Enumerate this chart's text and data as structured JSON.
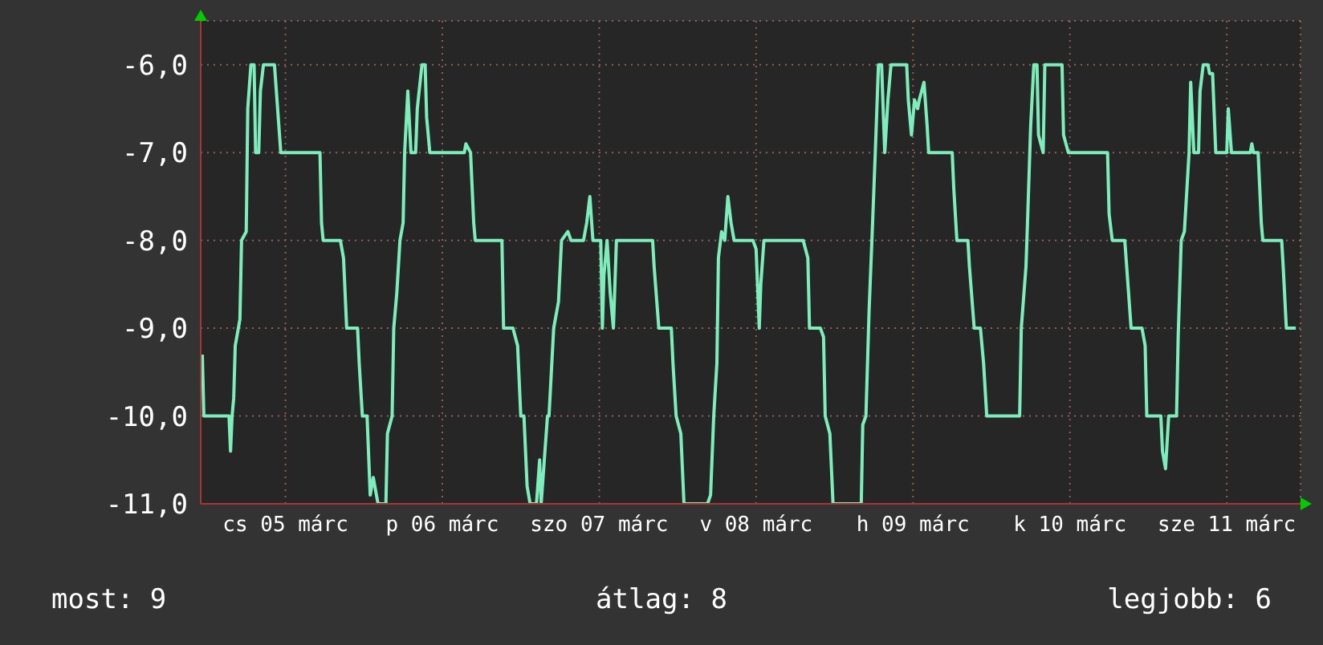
{
  "chart_data": {
    "type": "line",
    "color": "#7deebb",
    "marker": "none",
    "line_style": "solid",
    "grid": true,
    "legend": false,
    "x": [
      "--03-04T23:17",
      "--03-04T23:31",
      "--03-05T03:22",
      "--03-05T03:36",
      "--03-05T03:50",
      "--03-05T04:05",
      "--03-05T04:19",
      "--03-05T05:02",
      "--03-05T05:17",
      "--03-05T06:00",
      "--03-05T06:14",
      "--03-05T06:43",
      "--03-05T07:12",
      "--03-05T07:26",
      "--03-05T07:55",
      "--03-05T08:10",
      "--03-05T08:38",
      "--03-05T10:19",
      "--03-05T10:48",
      "--03-05T11:17",
      "--03-05T17:17",
      "--03-05T17:31",
      "--03-05T17:46",
      "--03-05T20:24",
      "--03-05T20:53",
      "--03-05T21:22",
      "--03-05T23:02",
      "--03-05T23:17",
      "--03-05T23:46",
      "--03-06T00:29",
      "--03-06T00:58",
      "--03-06T01:26",
      "--03-06T01:55",
      "--03-06T02:10",
      "--03-06T03:22",
      "--03-06T03:36",
      "--03-06T04:19",
      "--03-06T04:34",
      "--03-06T05:02",
      "--03-06T05:31",
      "--03-06T06:00",
      "--03-06T06:14",
      "--03-06T06:43",
      "--03-06T07:12",
      "--03-06T07:55",
      "--03-06T08:10",
      "--03-06T08:53",
      "--03-06T09:22",
      "--03-06T09:36",
      "--03-06T10:05",
      "--03-06T15:22",
      "--03-06T15:36",
      "--03-06T16:19",
      "--03-06T16:48",
      "--03-06T17:02",
      "--03-06T21:07",
      "--03-06T21:22",
      "--03-06T22:48",
      "--03-06T23:31",
      "--03-07T00:00",
      "--03-07T00:29",
      "--03-07T00:58",
      "--03-07T01:26",
      "--03-07T02:24",
      "--03-07T02:53",
      "--03-07T03:07",
      "--03-07T03:36",
      "--03-07T04:05",
      "--03-07T04:19",
      "--03-07T05:02",
      "--03-07T05:46",
      "--03-07T06:14",
      "--03-07T07:12",
      "--03-07T07:41",
      "--03-07T09:36",
      "--03-07T10:05",
      "--03-07T10:34",
      "--03-07T11:02",
      "--03-07T12:14",
      "--03-07T12:29",
      "--03-07T12:43",
      "--03-07T13:12",
      "--03-07T13:41",
      "--03-07T14:10",
      "--03-07T14:38",
      "--03-07T20:10",
      "--03-07T20:24",
      "--03-07T21:07",
      "--03-07T23:02",
      "--03-07T23:17",
      "--03-07T23:46",
      "--03-08T00:29",
      "--03-08T00:58",
      "--03-08T04:34",
      "--03-08T05:02",
      "--03-08T05:31",
      "--03-08T06:00",
      "--03-08T06:14",
      "--03-08T06:43",
      "--03-08T07:12",
      "--03-08T07:41",
      "--03-08T08:10",
      "--03-08T08:38",
      "--03-08T11:31",
      "--03-08T12:00",
      "--03-08T12:29",
      "--03-08T12:43",
      "--03-08T13:12",
      "--03-08T19:12",
      "--03-08T19:55",
      "--03-08T20:10",
      "--03-08T21:50",
      "--03-08T22:19",
      "--03-08T22:34",
      "--03-08T23:17",
      "--03-08T23:46",
      "--03-09T04:05",
      "--03-09T04:19",
      "--03-09T04:48",
      "--03-09T05:17",
      "--03-09T05:46",
      "--03-09T06:14",
      "--03-09T06:43",
      "--03-09T07:12",
      "--03-09T07:26",
      "--03-09T07:41",
      "--03-09T08:10",
      "--03-09T08:38",
      "--03-09T11:02",
      "--03-09T11:17",
      "--03-09T11:46",
      "--03-09T12:14",
      "--03-09T12:43",
      "--03-09T12:58",
      "--03-09T13:41",
      "--03-09T14:10",
      "--03-09T14:24",
      "--03-09T18:00",
      "--03-09T18:14",
      "--03-09T18:43",
      "--03-09T20:24",
      "--03-09T20:38",
      "--03-09T21:22",
      "--03-09T22:19",
      "--03-09T22:48",
      "--03-09T23:17",
      "--03-10T04:19",
      "--03-10T04:34",
      "--03-10T05:17",
      "--03-10T05:31",
      "--03-10T06:00",
      "--03-10T06:29",
      "--03-10T06:58",
      "--03-10T07:12",
      "--03-10T07:55",
      "--03-10T08:10",
      "--03-10T10:48",
      "--03-10T11:02",
      "--03-10T11:46",
      "--03-10T17:46",
      "--03-10T18:00",
      "--03-10T18:29",
      "--03-10T20:24",
      "--03-10T20:53",
      "--03-10T21:22",
      "--03-10T23:02",
      "--03-10T23:31",
      "--03-10T23:46",
      "--03-11T01:55",
      "--03-11T02:10",
      "--03-11T02:38",
      "--03-11T03:07",
      "--03-11T04:19",
      "--03-11T04:34",
      "--03-11T05:02",
      "--03-11T05:31",
      "--03-11T06:14",
      "--03-11T06:29",
      "--03-11T06:58",
      "--03-11T07:41",
      "--03-11T07:55",
      "--03-11T08:24",
      "--03-11T09:07",
      "--03-11T09:22",
      "--03-11T09:50",
      "--03-11T10:19",
      "--03-11T12:00",
      "--03-11T12:14",
      "--03-11T12:43",
      "--03-11T15:36",
      "--03-11T15:50",
      "--03-11T16:05",
      "--03-11T16:48",
      "--03-11T17:17",
      "--03-11T17:31",
      "--03-11T20:24",
      "--03-11T20:38",
      "--03-11T21:07",
      "--03-11T22:34"
    ],
    "values": [
      -9.3,
      -10.0,
      -10.0,
      -10.4,
      -10.0,
      -9.8,
      -9.2,
      -8.9,
      -8.0,
      -7.9,
      -6.5,
      -6.0,
      -6.0,
      -7.0,
      -7.0,
      -6.3,
      -6.0,
      -6.0,
      -6.5,
      -7.0,
      -7.0,
      -7.8,
      -8.0,
      -8.0,
      -8.2,
      -9.0,
      -9.0,
      -9.4,
      -10.0,
      -10.0,
      -10.9,
      -10.7,
      -10.9,
      -11.0,
      -11.0,
      -10.2,
      -10.0,
      -9.0,
      -8.6,
      -8.0,
      -7.8,
      -7.0,
      -6.3,
      -7.0,
      -7.0,
      -6.5,
      -6.0,
      -6.0,
      -6.6,
      -7.0,
      -7.0,
      -6.9,
      -7.0,
      -7.8,
      -8.0,
      -8.0,
      -9.0,
      -9.0,
      -9.2,
      -10.0,
      -10.0,
      -10.8,
      -11.0,
      -11.0,
      -10.5,
      -11.0,
      -10.5,
      -10.0,
      -10.0,
      -9.0,
      -8.7,
      -8.0,
      -7.9,
      -8.0,
      -8.0,
      -7.8,
      -7.5,
      -8.0,
      -8.0,
      -9.0,
      -8.4,
      -8.0,
      -8.6,
      -9.0,
      -8.0,
      -8.0,
      -8.3,
      -9.0,
      -9.0,
      -9.4,
      -10.0,
      -10.2,
      -11.0,
      -11.0,
      -10.9,
      -10.0,
      -9.4,
      -8.2,
      -7.9,
      -8.0,
      -7.5,
      -7.8,
      -8.0,
      -8.0,
      -8.1,
      -9.0,
      -8.5,
      -8.0,
      -8.0,
      -8.2,
      -9.0,
      -9.0,
      -9.1,
      -10.0,
      -10.2,
      -11.0,
      -11.0,
      -10.1,
      -10.0,
      -8.8,
      -7.9,
      -7.0,
      -6.0,
      -6.0,
      -6.5,
      -7.0,
      -6.4,
      -6.0,
      -6.0,
      -6.4,
      -6.8,
      -6.4,
      -6.5,
      -6.4,
      -6.2,
      -6.7,
      -7.0,
      -7.0,
      -7.4,
      -8.0,
      -8.0,
      -8.3,
      -9.0,
      -9.0,
      -9.4,
      -10.0,
      -10.0,
      -9.0,
      -8.3,
      -7.8,
      -6.7,
      -6.0,
      -6.0,
      -6.8,
      -7.0,
      -6.0,
      -6.0,
      -6.8,
      -7.0,
      -7.0,
      -7.7,
      -8.0,
      -8.0,
      -8.5,
      -9.0,
      -9.0,
      -9.2,
      -10.0,
      -10.0,
      -10.4,
      -10.6,
      -10.0,
      -10.0,
      -9.1,
      -8.0,
      -7.9,
      -7.0,
      -6.2,
      -7.0,
      -7.0,
      -6.3,
      -6.0,
      -6.0,
      -6.1,
      -6.1,
      -7.0,
      -7.0,
      -6.5,
      -7.0,
      -7.0,
      -6.9,
      -7.0,
      -7.0,
      -7.8,
      -8.0,
      -8.0,
      -8.3,
      -9.0,
      -9.0
    ],
    "xlim": [
      "--03-04T23:02",
      "--03-11T23:17"
    ],
    "xticks": [
      {
        "value": "--03-05T12:00",
        "label": "cs 05 márc"
      },
      {
        "value": "--03-06T12:00",
        "label": "p 06 márc"
      },
      {
        "value": "--03-07T12:00",
        "label": "szo 07 márc"
      },
      {
        "value": "--03-08T12:00",
        "label": "v 08 márc"
      },
      {
        "value": "--03-09T12:00",
        "label": "h 09 márc"
      },
      {
        "value": "--03-10T12:00",
        "label": "k 10 márc"
      },
      {
        "value": "--03-11T12:00",
        "label": "sze 11 márc"
      }
    ],
    "ylim": [
      -11,
      -5.5
    ],
    "yticks": [
      {
        "value": -11,
        "label": "-11,0"
      },
      {
        "value": -10,
        "label": "-10,0"
      },
      {
        "value": -9,
        "label": "-9,0"
      },
      {
        "value": -8,
        "label": "-8,0"
      },
      {
        "value": -7,
        "label": "-7,0"
      },
      {
        "value": -6,
        "label": "-6,0"
      }
    ],
    "annotations": [
      "most: 9",
      "átlag: 8",
      "legjobb: 6"
    ]
  }
}
